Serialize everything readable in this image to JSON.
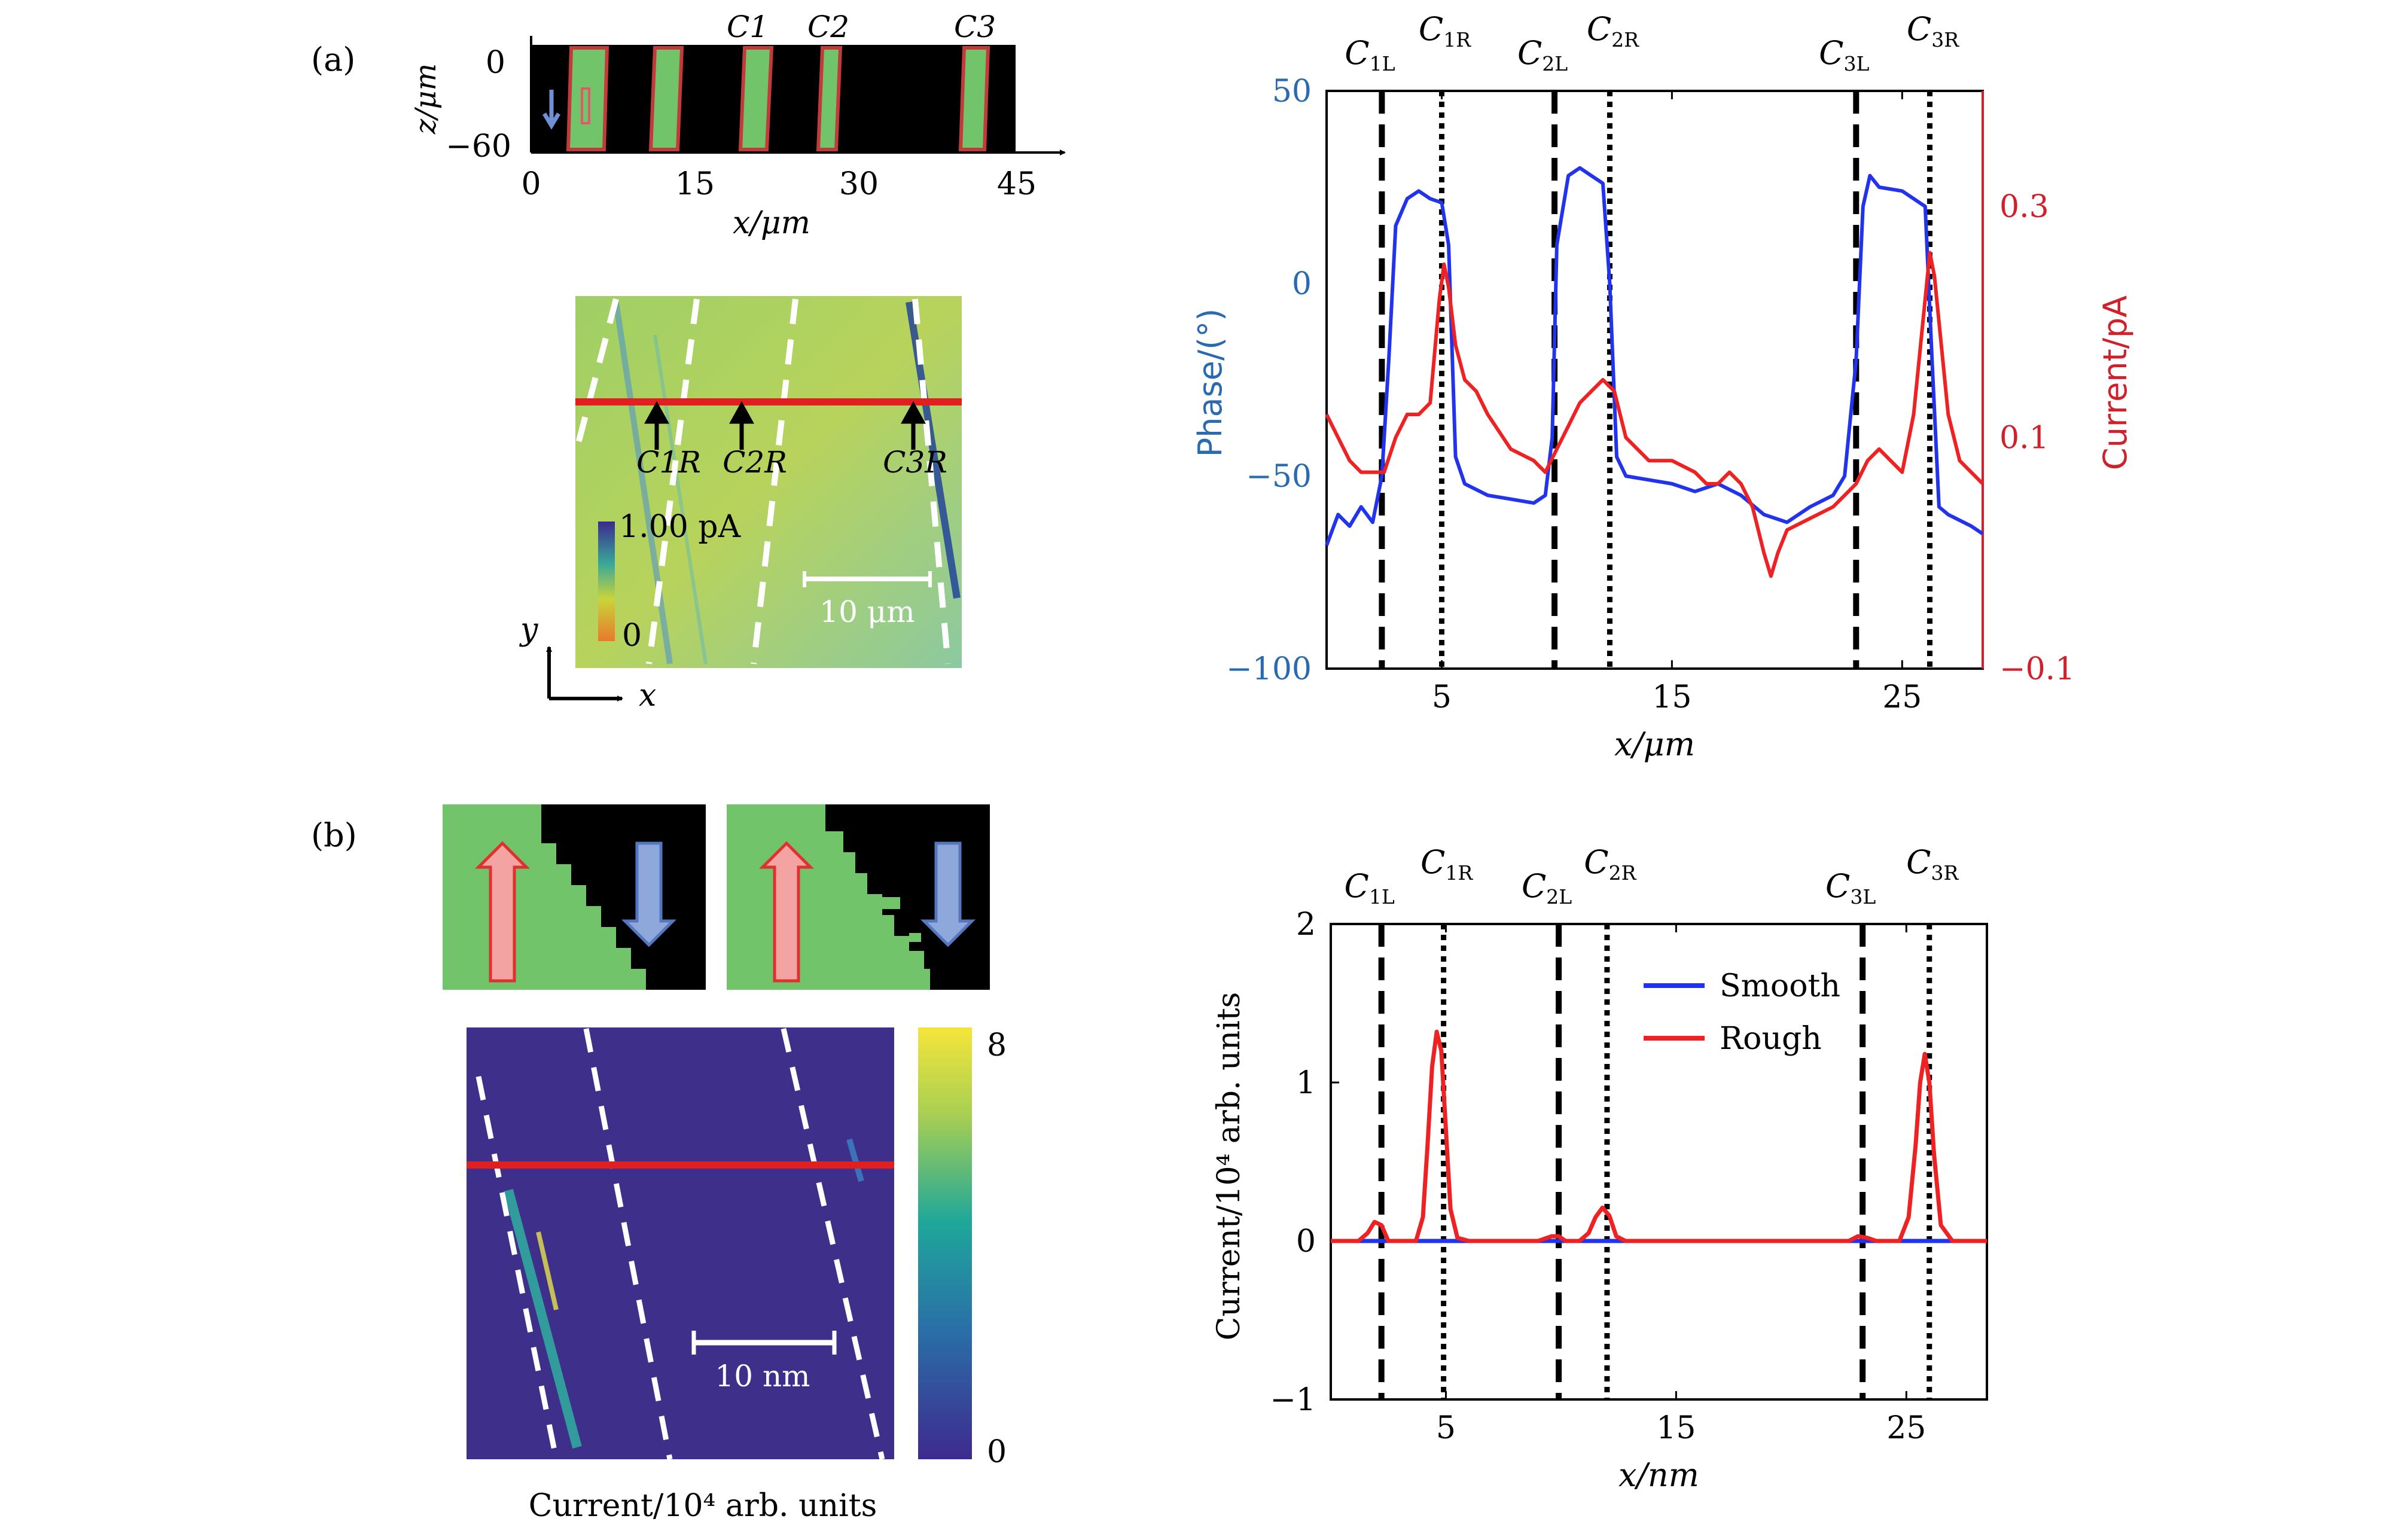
{
  "panels": {
    "a": "(a)",
    "b": "(b)"
  },
  "domain_strip": {
    "y_label": "z/μm",
    "x_label": "x/μm",
    "y_ticks": [
      "0",
      "−60"
    ],
    "x_ticks": [
      "0",
      "15",
      "30",
      "45"
    ],
    "walls": [
      "C1",
      "C2",
      "C3"
    ]
  },
  "map_a": {
    "markers": [
      "C1R",
      "C2R",
      "C3R"
    ],
    "colorbar_max": "1.00 pA",
    "colorbar_min": "0",
    "scalebar": "10 μm",
    "axis_y": "y",
    "axis_x": "x"
  },
  "map_b": {
    "scalebar": "10 nm",
    "colorbar_max": "8",
    "colorbar_min": "0",
    "caption": "Current/10⁴ arb. units"
  },
  "colors": {
    "blue": "#2233ee",
    "red": "#ee2222",
    "phase_axis": "#2a6ab0",
    "current_axis": "#d0202a",
    "domain_green": "#72c46a"
  },
  "chart_data": [
    {
      "type": "line",
      "panel": "a",
      "xlabel": "x/μm",
      "ylabel": "Phase/(°)",
      "y2label": "Current/pA",
      "xlim": [
        0,
        28.5
      ],
      "ylim": [
        -100,
        50
      ],
      "y2lim": [
        -0.1,
        0.4
      ],
      "x_ticks": [
        "5",
        "15",
        "25"
      ],
      "y_ticks": [
        "50",
        "0",
        "−50",
        "−100"
      ],
      "y2_ticks": [
        "0.3",
        "0.1",
        "−0.1"
      ],
      "wall_labels": [
        "C1L",
        "C1R",
        "C2L",
        "C2R",
        "C3L",
        "C3R"
      ],
      "walls_left": [
        2.4,
        9.9,
        23.0
      ],
      "walls_right": [
        5.0,
        12.3,
        26.2
      ],
      "series": [
        {
          "axis": "left",
          "color": "#2233ee",
          "x": [
            0,
            0.5,
            1,
            1.5,
            2,
            2.4,
            2.7,
            3,
            3.5,
            4,
            4.5,
            5,
            5.3,
            5.6,
            6,
            7,
            8,
            9,
            9.5,
            9.8,
            10,
            10.5,
            11,
            11.5,
            12,
            12.3,
            12.6,
            13,
            14,
            15,
            16,
            17,
            18,
            19,
            20,
            21,
            22,
            22.5,
            23,
            23.3,
            23.6,
            24,
            25,
            25.5,
            26,
            26.3,
            26.6,
            27,
            28,
            28.5
          ],
          "y": [
            -68,
            -60,
            -63,
            -58,
            -62,
            -50,
            -20,
            15,
            22,
            24,
            22,
            21,
            10,
            -45,
            -52,
            -55,
            -56,
            -57,
            -55,
            -40,
            10,
            28,
            30,
            28,
            26,
            0,
            -45,
            -50,
            -51,
            -52,
            -54,
            -52,
            -55,
            -60,
            -62,
            -58,
            -55,
            -50,
            -20,
            20,
            28,
            25,
            24,
            22,
            20,
            -20,
            -58,
            -60,
            -63,
            -65
          ]
        },
        {
          "axis": "right",
          "color": "#ee2222",
          "x": [
            0,
            0.5,
            1,
            1.5,
            2,
            2.5,
            3,
            3.5,
            4,
            4.5,
            4.9,
            5.1,
            5.3,
            5.6,
            6,
            6.5,
            7,
            8,
            9,
            9.5,
            10,
            10.5,
            11,
            11.5,
            12,
            12.5,
            13,
            14,
            15,
            16,
            16.5,
            17,
            17.5,
            18,
            18.5,
            19,
            19.3,
            19.6,
            20,
            21,
            22,
            22.5,
            23,
            23.5,
            24,
            24.5,
            25,
            25.5,
            26,
            26.2,
            26.4,
            27,
            27.5,
            28,
            28.5
          ],
          "y": [
            0.12,
            0.1,
            0.08,
            0.07,
            0.07,
            0.07,
            0.1,
            0.12,
            0.12,
            0.13,
            0.22,
            0.25,
            0.23,
            0.18,
            0.15,
            0.14,
            0.12,
            0.09,
            0.08,
            0.07,
            0.09,
            0.11,
            0.13,
            0.14,
            0.15,
            0.14,
            0.1,
            0.08,
            0.08,
            0.07,
            0.06,
            0.06,
            0.07,
            0.06,
            0.04,
            0.0,
            -0.02,
            0.0,
            0.02,
            0.03,
            0.04,
            0.05,
            0.06,
            0.08,
            0.09,
            0.08,
            0.07,
            0.12,
            0.22,
            0.26,
            0.24,
            0.12,
            0.08,
            0.07,
            0.06
          ]
        }
      ]
    },
    {
      "type": "line",
      "panel": "b",
      "xlabel": "x/nm",
      "ylabel": "Current/10⁴ arb. units",
      "xlim": [
        0,
        28.5
      ],
      "ylim": [
        -1,
        2
      ],
      "x_ticks": [
        "5",
        "15",
        "25"
      ],
      "y_ticks": [
        "2",
        "1",
        "0",
        "−1"
      ],
      "wall_labels": [
        "C1L",
        "C1R",
        "C2L",
        "C2R",
        "C3L",
        "C3R"
      ],
      "walls_left": [
        2.2,
        9.9,
        23.1
      ],
      "walls_right": [
        4.9,
        12.0,
        26.0
      ],
      "series": [
        {
          "name": "Smooth",
          "color": "#2233ee",
          "x": [
            0,
            28.5
          ],
          "y": [
            0,
            0
          ]
        },
        {
          "name": "Rough",
          "color": "#ee2222",
          "x": [
            0,
            1.2,
            1.6,
            1.9,
            2.2,
            2.5,
            3.2,
            3.7,
            4.0,
            4.2,
            4.4,
            4.6,
            4.8,
            5.0,
            5.2,
            5.5,
            6.0,
            9.0,
            9.6,
            9.9,
            10.2,
            10.8,
            11.2,
            11.5,
            11.8,
            12.1,
            12.4,
            12.8,
            22.5,
            22.9,
            23.3,
            23.7,
            24.7,
            25.1,
            25.4,
            25.6,
            25.8,
            26.0,
            26.2,
            26.5,
            27.0,
            28.5
          ],
          "y": [
            0,
            0,
            0.05,
            0.12,
            0.1,
            0,
            0,
            0,
            0.15,
            0.6,
            1.1,
            1.32,
            1.2,
            0.7,
            0.2,
            0.02,
            0,
            0,
            0.03,
            0.03,
            0,
            0,
            0.05,
            0.15,
            0.21,
            0.16,
            0.03,
            0,
            0,
            0.03,
            0.02,
            0,
            0,
            0.15,
            0.6,
            1.0,
            1.18,
            1.0,
            0.55,
            0.1,
            0,
            0
          ]
        }
      ]
    }
  ]
}
